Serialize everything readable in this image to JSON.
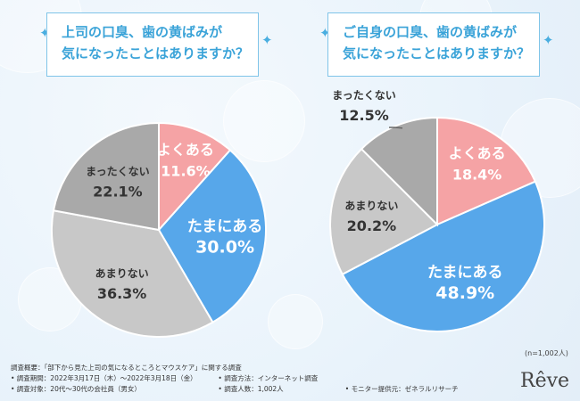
{
  "footer": {
    "summary": "調査概要：「部下から見た上司の気になるところとマウスケア」に関する調査",
    "period": "• 調査期間：2022年3月17日（木）〜2022年3月18日（金）",
    "method": "• 調査方法：インターネット調査",
    "target": "• 調査対象：20代〜30代の会社員（男女）",
    "count": "• 調査人数：1,002人",
    "provider": "• モニター提供元：ゼネラルリサーチ"
  },
  "sample_note": "(n=1,002人)",
  "logo": "Rêve",
  "colors": {
    "accent": "#3aa3d8",
    "pink": "#f5a3a5",
    "blue": "#57a7ea",
    "lightgray": "#c8c8c8",
    "darkgray": "#a9a9a9"
  },
  "chart_data": [
    {
      "type": "pie",
      "title": "上司の口臭、歯の黄ばみが 気になったことはありますか？",
      "title_lines": [
        "上司の口臭、歯の黄ばみが",
        "気になったことはありますか？"
      ],
      "start_angle_deg": 0,
      "slices": [
        {
          "label": "よくある",
          "value": 11.6,
          "value_label": "11.6%",
          "color": "#f5a3a5",
          "text_color": "#ffffff"
        },
        {
          "label": "たまにある",
          "value": 30.0,
          "value_label": "30.0%",
          "color": "#57a7ea",
          "text_color": "#ffffff"
        },
        {
          "label": "あまりない",
          "value": 36.3,
          "value_label": "36.3%",
          "color": "#c8c8c8",
          "text_color": "#333333"
        },
        {
          "label": "まったくない",
          "value": 22.1,
          "value_label": "22.1%",
          "color": "#a9a9a9",
          "text_color": "#333333"
        }
      ]
    },
    {
      "type": "pie",
      "title": "ご自身の口臭、歯の黄ばみが 気になったことはありますか？",
      "title_lines": [
        "ご自身の口臭、歯の黄ばみが",
        "気になったことはありますか？"
      ],
      "start_angle_deg": 0,
      "slices": [
        {
          "label": "よくある",
          "value": 18.4,
          "value_label": "18.4%",
          "color": "#f5a3a5",
          "text_color": "#ffffff"
        },
        {
          "label": "たまにある",
          "value": 48.9,
          "value_label": "48.9%",
          "color": "#57a7ea",
          "text_color": "#ffffff"
        },
        {
          "label": "あまりない",
          "value": 20.2,
          "value_label": "20.2%",
          "color": "#c8c8c8",
          "text_color": "#333333"
        },
        {
          "label": "まったくない",
          "value": 12.5,
          "value_label": "12.5%",
          "color": "#a9a9a9",
          "text_color": "#333333"
        }
      ]
    }
  ]
}
